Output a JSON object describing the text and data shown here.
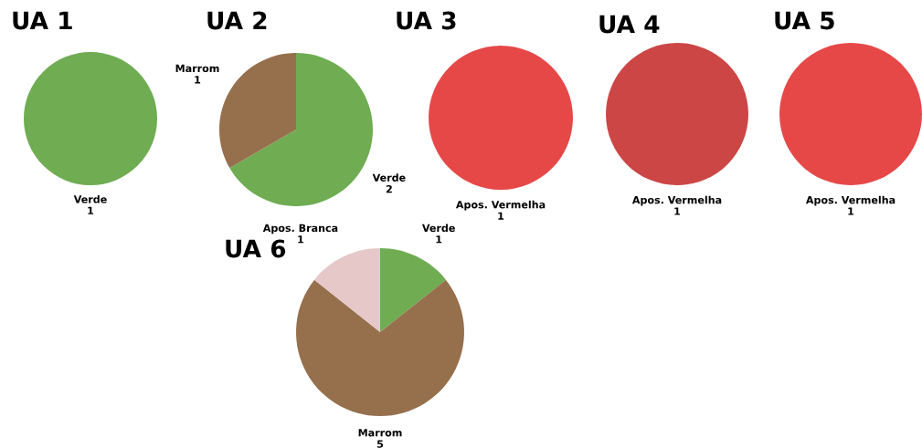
{
  "chart_data": [
    {
      "type": "pie",
      "title": "UA 1",
      "categories": [
        "Verde"
      ],
      "values": [
        1
      ],
      "colors": [
        "#6fac52"
      ],
      "data_labels": true
    },
    {
      "type": "pie",
      "title": "UA 2",
      "categories": [
        "Verde",
        "Marrom"
      ],
      "values": [
        2,
        1
      ],
      "colors": [
        "#6fac52",
        "#966f4d"
      ],
      "data_labels": true
    },
    {
      "type": "pie",
      "title": "UA 3",
      "categories": [
        "Apos. Vermelha"
      ],
      "values": [
        1
      ],
      "colors": [
        "#e64848"
      ],
      "data_labels": true
    },
    {
      "type": "pie",
      "title": "UA 4",
      "categories": [
        "Apos. Vermelha"
      ],
      "values": [
        1
      ],
      "colors": [
        "#cc4646"
      ],
      "data_labels": true
    },
    {
      "type": "pie",
      "title": "UA 5",
      "categories": [
        "Apos. Vermelha"
      ],
      "values": [
        1
      ],
      "colors": [
        "#e64848"
      ],
      "data_labels": true
    },
    {
      "type": "pie",
      "title": "UA 6",
      "categories": [
        "Verde",
        "Marrom",
        "Apos. Branca"
      ],
      "values": [
        1,
        5,
        1
      ],
      "colors": [
        "#6fac52",
        "#966f4d",
        "#e6c8c8"
      ],
      "data_labels": true
    }
  ]
}
